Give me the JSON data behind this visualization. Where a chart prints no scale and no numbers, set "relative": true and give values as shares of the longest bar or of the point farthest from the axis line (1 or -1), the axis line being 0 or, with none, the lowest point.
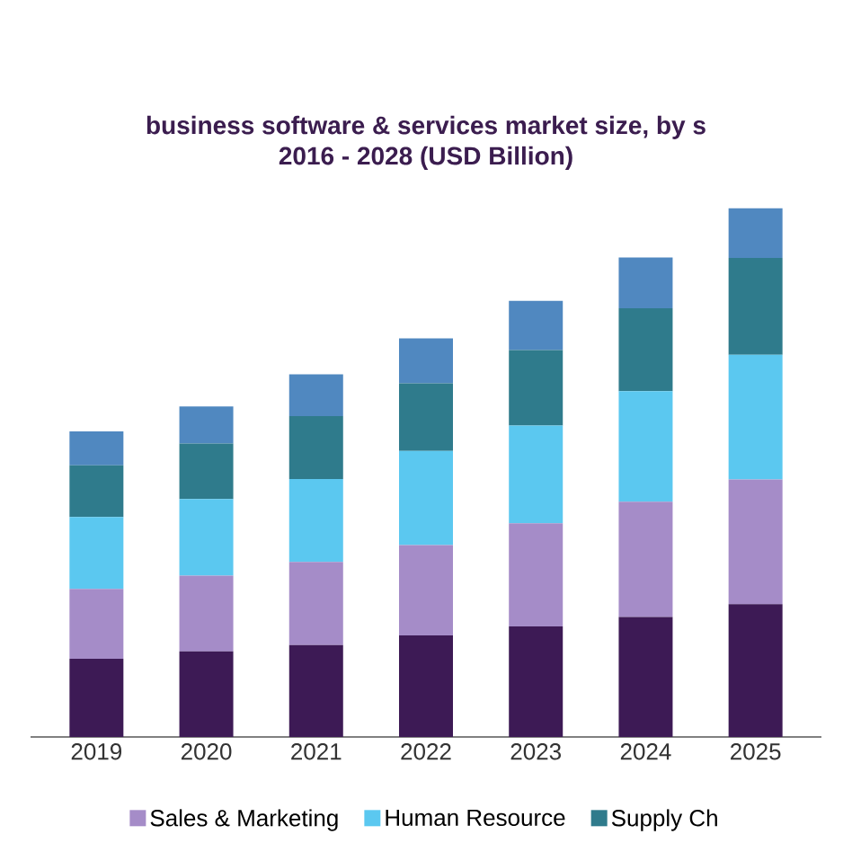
{
  "chart_data": {
    "type": "bar",
    "stacked": true,
    "relative": true,
    "title": "business software & services market size, by s",
    "subtitle": "2016 - 2028 (USD Billion)",
    "categories": [
      "2019",
      "2020",
      "2021",
      "2022",
      "2023",
      "2024",
      "2025"
    ],
    "series": [
      {
        "color": "#3d1a55",
        "values": [
          0.148,
          0.162,
          0.174,
          0.192,
          0.209,
          0.227,
          0.251
        ]
      },
      {
        "name": "Sales & Marketing",
        "color": "#a58cc8",
        "values": [
          0.132,
          0.143,
          0.157,
          0.171,
          0.195,
          0.218,
          0.236
        ]
      },
      {
        "name": "Human Resource",
        "color": "#5bc8f0",
        "values": [
          0.136,
          0.145,
          0.157,
          0.178,
          0.185,
          0.209,
          0.236
        ]
      },
      {
        "name": "Supply Ch",
        "color": "#2f7b8c",
        "values": [
          0.098,
          0.105,
          0.119,
          0.128,
          0.143,
          0.157,
          0.183
        ]
      },
      {
        "color": "#5088c0",
        "values": [
          0.064,
          0.07,
          0.079,
          0.085,
          0.093,
          0.096,
          0.094
        ]
      }
    ],
    "legend": "bottom"
  }
}
